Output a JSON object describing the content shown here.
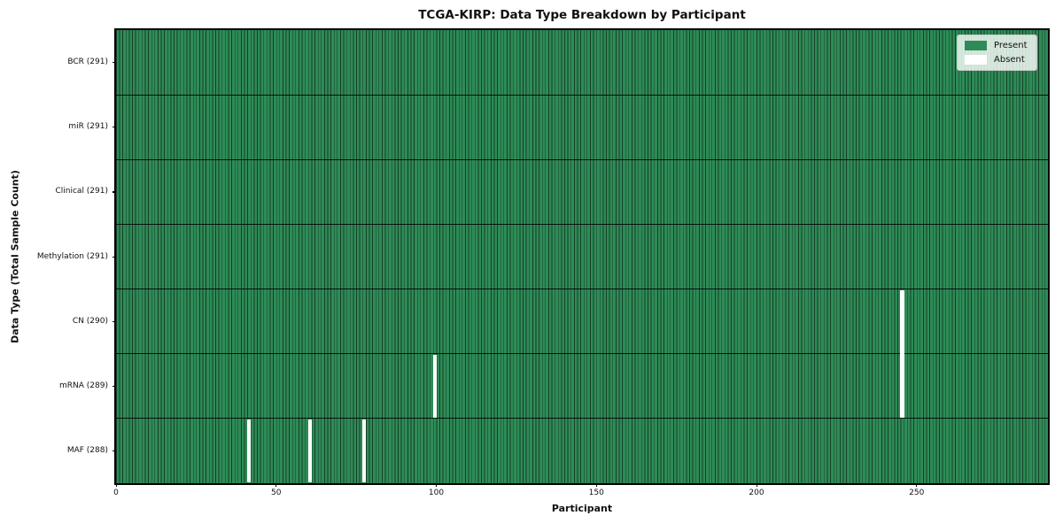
{
  "chart_data": {
    "type": "heatmap",
    "title": "TCGA-KIRP: Data Type Breakdown by Participant",
    "xlabel": "Participant",
    "ylabel": "Data Type (Total Sample Count)",
    "n_participants": 291,
    "x_range": [
      0,
      291
    ],
    "x_ticks": [
      0,
      50,
      100,
      150,
      200,
      250
    ],
    "grid": false,
    "cell_values": "binary presence matrix: 1 = Present (green), 0 = Absent (white)",
    "rows": [
      {
        "data_type": "BCR",
        "label": "BCR (291)",
        "present_count": 291,
        "absent_participants": []
      },
      {
        "data_type": "miR",
        "label": "miR (291)",
        "present_count": 291,
        "absent_participants": []
      },
      {
        "data_type": "Clinical",
        "label": "Clinical (291)",
        "present_count": 291,
        "absent_participants": []
      },
      {
        "data_type": "Methylation",
        "label": "Methylation (291)",
        "present_count": 291,
        "absent_participants": []
      },
      {
        "data_type": "CN",
        "label": "CN (290)",
        "present_count": 290,
        "absent_participants": [
          245
        ]
      },
      {
        "data_type": "mRNA",
        "label": "mRNA (289)",
        "present_count": 289,
        "absent_participants": [
          99,
          245
        ]
      },
      {
        "data_type": "MAF",
        "label": "MAF (288)",
        "present_count": 288,
        "absent_participants": [
          41,
          60,
          77
        ]
      }
    ],
    "legend": {
      "position": "upper right",
      "items": [
        {
          "label": "Present",
          "color": "#2E8B57"
        },
        {
          "label": "Absent",
          "color": "#FFFFFF"
        }
      ]
    },
    "colors": {
      "present": "#2E8B57",
      "absent": "#FFFFFF",
      "cell_edge": "rgba(0,0,0,0.55)",
      "row_separator": "rgba(0,0,0,0.85)",
      "plot_border": "#000000",
      "background": "#FFFFFF",
      "text": "#111111"
    }
  }
}
